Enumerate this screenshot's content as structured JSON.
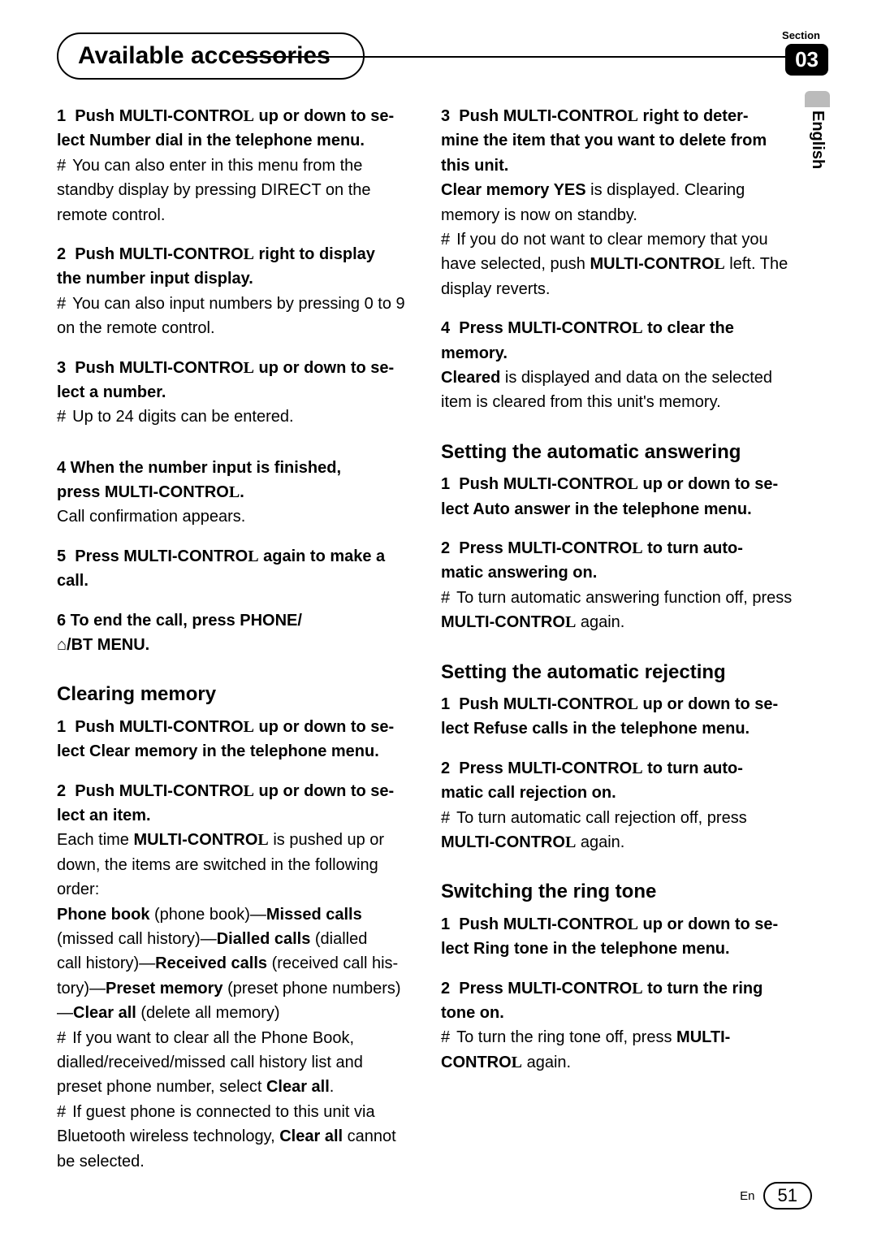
{
  "colors": {
    "text": "#000000",
    "background": "#ffffff",
    "badge_bg": "#000000",
    "badge_fg": "#ffffff",
    "tab_accent": "#bbbbbb"
  },
  "header": {
    "section_label": "Section",
    "section_number": "03",
    "title": "Available accessories",
    "language": "English"
  },
  "left": {
    "step1a": "1 Push MULTI-CONTROL up or down to se-",
    "step1b": "lect Number dial in the telephone menu.",
    "note1a_hash": "#",
    "note1a": "You can also enter in this menu from the standby display by pressing DIRECT on the remote control.",
    "step2a": "2 Push MULTI-CONTROL right to display",
    "step2b": "the number input display.",
    "note2a_hash": "#",
    "note2a": "You can also input numbers by pressing 0 to 9 on the remote control.",
    "step3a": "3 Push MULTI-CONTROL up or down to se-",
    "step3b": "lect a number.",
    "note3_hash": "#",
    "note3": "Up to 24 digits can be entered.",
    "step4a": "4 When the number input is finished,",
    "step4b": "press MULTI-CONTROL.",
    "step4c": "Call confirmation appears.",
    "step5a": "5 Press MULTI-CONTROL again to make a",
    "step5b": "call.",
    "step6a": "6 To end the call, press PHONE/",
    "step6b": "⌂/BT MENU.",
    "clearing_heading": "Clearing memory",
    "c_step1a": "1 Push MULTI-CONTROL up or down to se-",
    "c_step1b": "lect Clear memory in the telephone menu.",
    "c_step2a": "2 Push MULTI-CONTROL up or down to se-",
    "c_step2b": "lect an item.",
    "c_step2_body1": "Each time MULTI-CONTROL is pushed up or down, the items are switched in the following order:",
    "c_list_l1": "Phone book (phone book)—Missed calls",
    "c_list_l2": "(missed call history)—Dialled calls (dialled",
    "c_list_l3": "call history)—Received calls (received call his-",
    "c_list_l4": "tory)—Preset memory (preset phone numbers)",
    "c_list_l5": "—Clear all (delete all memory)",
    "c_note1_hash": "#",
    "c_note1": "If you want to clear all the Phone Book, dialled/received/missed call history list and preset phone number, select Clear all.",
    "c_note2_hash": "#",
    "c_note2": "If guest phone is connected to this unit via Bluetooth wireless technology, Clear all cannot be selected."
  },
  "right": {
    "r_step3a": "3 Push MULTI-CONTROL right to deter-",
    "r_step3b": "mine the item that you want to delete from",
    "r_step3c": "this unit.",
    "r_step3_body": "Clear memory YES is displayed. Clearing memory is now on standby.",
    "r_note1_hash": "#",
    "r_note1": "If you do not want to clear memory that you have selected, push MULTI-CONTROL left. The display reverts.",
    "r_step4a": "4 Press MULTI-CONTROL to clear the",
    "r_step4b": "memory.",
    "r_step4_body": "Cleared is displayed and data on the selected item is cleared from this unit's memory.",
    "auto_ans_heading": "Setting the automatic answering",
    "aa_step1a": "1 Push MULTI-CONTROL up or down to se-",
    "aa_step1b": "lect Auto answer in the telephone menu.",
    "aa_step2a": "2 Press MULTI-CONTROL to turn auto-",
    "aa_step2b": "matic answering on.",
    "aa_note_hash": "#",
    "aa_note": "To turn automatic answering function off, press MULTI-CONTROL again.",
    "auto_rej_heading": "Setting the automatic rejecting",
    "ar_step1a": "1 Push MULTI-CONTROL up or down to se-",
    "ar_step1b": "lect Refuse calls in the telephone menu.",
    "ar_step2a": "2 Press MULTI-CONTROL to turn auto-",
    "ar_step2b": "matic call rejection on.",
    "ar_note_hash": "#",
    "ar_note": "To turn automatic call rejection off, press MULTI-CONTROL again.",
    "ring_heading": "Switching the ring tone",
    "rt_step1a": "1 Push MULTI-CONTROL up or down to se-",
    "rt_step1b": "lect Ring tone in the telephone menu.",
    "rt_step2a": "2 Press MULTI-CONTROL to turn the ring",
    "rt_step2b": "tone on.",
    "rt_note_hash": "#",
    "rt_note": "To turn the ring tone off, press MULTI-CONTROL again."
  },
  "footer": {
    "lang_short": "En",
    "page_number": "51"
  }
}
